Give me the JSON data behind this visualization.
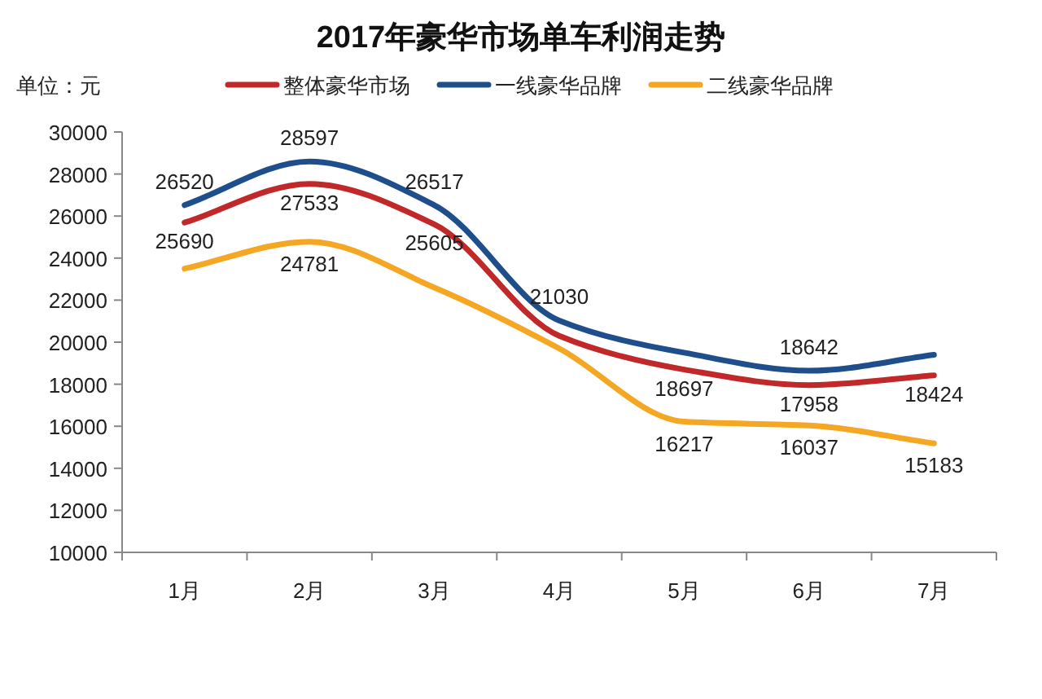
{
  "chart_data": {
    "type": "line",
    "title": "2017年豪华市场单车利润走势",
    "ylabel": "单位：元",
    "categories": [
      "1月",
      "2月",
      "3月",
      "4月",
      "5月",
      "6月",
      "7月"
    ],
    "series": [
      {
        "name": "整体豪华市场",
        "color": "#c0282a",
        "values": [
          25690,
          27533,
          25605,
          20300,
          18697,
          17958,
          18424
        ],
        "value_labels": [
          "25690",
          "27533",
          "25605",
          null,
          "18697",
          "17958",
          "18424"
        ]
      },
      {
        "name": "一线豪华品牌",
        "color": "#1f4e8c",
        "values": [
          26520,
          28597,
          26517,
          21030,
          19500,
          18642,
          19400
        ],
        "value_labels": [
          "26520",
          "28597",
          "26517",
          "21030",
          null,
          "18642",
          null
        ]
      },
      {
        "name": "二线豪华品牌",
        "color": "#f5a623",
        "values": [
          23500,
          24781,
          22600,
          19700,
          16217,
          16037,
          15183
        ],
        "value_labels": [
          null,
          "24781",
          null,
          null,
          "16217",
          "16037",
          "15183"
        ]
      }
    ],
    "ylim": [
      10000,
      30000
    ],
    "yticks": [
      10000,
      12000,
      14000,
      16000,
      18000,
      20000,
      22000,
      24000,
      26000,
      28000,
      30000
    ],
    "grid": false,
    "legend": "top",
    "marker": "none",
    "line_style": "solid"
  }
}
